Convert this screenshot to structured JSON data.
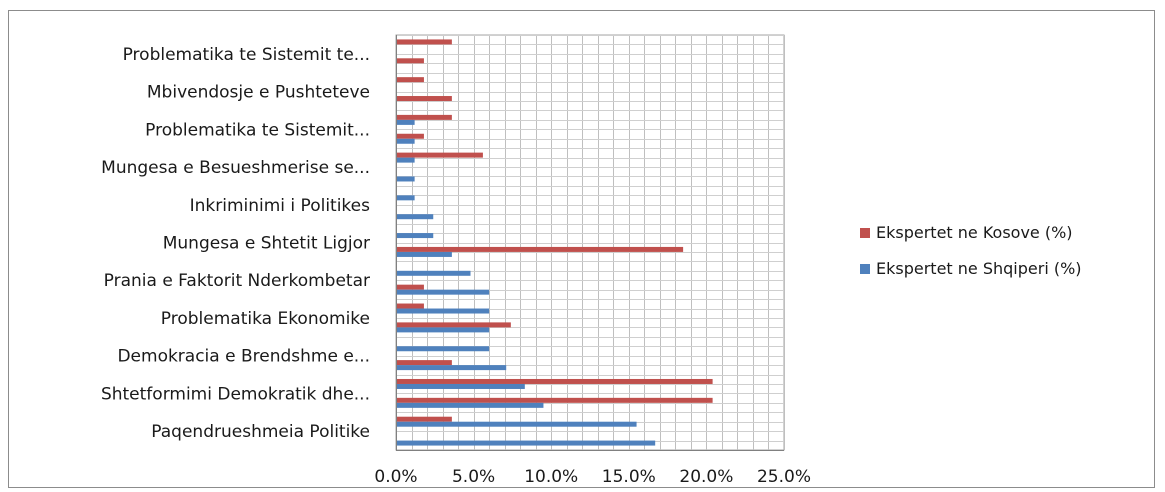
{
  "chart_data": {
    "type": "bar",
    "orientation": "horizontal",
    "title": "",
    "xlabel": "",
    "ylabel": "",
    "xlim": [
      0,
      25
    ],
    "x_ticks": [
      0,
      5,
      10,
      15,
      20,
      25
    ],
    "tick_labels": [
      "0.0%",
      "5.0%",
      "10.0%",
      "15.0%",
      "20.0%",
      "25.0%"
    ],
    "grid": true,
    "legend_position": "right",
    "categories": [
      "Paqendrueshmeia Politike",
      "",
      "Shtetformimi Demokratik dhe...",
      "",
      "Demokracia e Brendshme e...",
      "",
      "Problematika Ekonomike",
      "",
      "Prania e Faktorit Nderkombetar",
      "",
      "Mungesa e Shtetit Ligjor",
      "",
      "Inkriminimi i Politikes",
      "",
      "Mungesa e Besueshmerise se...",
      "",
      "Problematika te Sistemit...",
      "",
      "Mbivendosje e Pushteteve",
      "",
      "Problematika te Sistemit te...",
      ""
    ],
    "series": [
      {
        "name": "Ekspertet ne Kosove (%)",
        "color": "#c0504d",
        "values": [
          0,
          3.6,
          20.4,
          20.4,
          3.6,
          0,
          7.4,
          1.8,
          1.8,
          0,
          18.5,
          0,
          0,
          0,
          0,
          5.6,
          1.8,
          3.6,
          3.6,
          1.8,
          1.8,
          3.6
        ]
      },
      {
        "name": "Ekspertet ne Shqiperi (%)",
        "color": "#4f81bd",
        "values": [
          16.7,
          15.5,
          9.5,
          8.3,
          7.1,
          6.0,
          6.0,
          6.0,
          6.0,
          4.8,
          3.6,
          2.4,
          2.4,
          1.2,
          1.2,
          1.2,
          1.2,
          1.2,
          0,
          0,
          0,
          0
        ]
      }
    ]
  }
}
